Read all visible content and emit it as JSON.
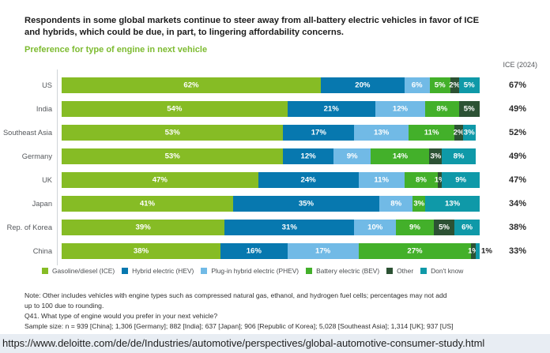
{
  "title": "Respondents in some global markets continue to steer away from all-battery electric vehicles in favor of ICE and hybrids, which could be due, in part, to lingering affordability concerns.",
  "subtitle": "Preference for type of engine in next vehicle",
  "chart_data": {
    "type": "bar",
    "orientation": "horizontal-stacked",
    "xlim": [
      0,
      100
    ],
    "legend_position": "bottom",
    "categories": [
      "US",
      "India",
      "Southeast Asia",
      "Germany",
      "UK",
      "Japan",
      "Rep. of Korea",
      "China"
    ],
    "series": [
      {
        "name": "Gasoline/diesel (ICE)",
        "color": "#86BC25",
        "values": [
          62,
          54,
          53,
          53,
          47,
          41,
          39,
          38
        ]
      },
      {
        "name": "Hybrid electric (HEV)",
        "color": "#0778AF",
        "values": [
          20,
          21,
          17,
          12,
          24,
          35,
          31,
          16
        ]
      },
      {
        "name": "Plug-in hybrid electric (PHEV)",
        "color": "#71BAE6",
        "values": [
          6,
          12,
          13,
          9,
          11,
          8,
          10,
          17
        ]
      },
      {
        "name": "Battery electric (BEV)",
        "color": "#43B02A",
        "values": [
          5,
          8,
          11,
          14,
          8,
          3,
          9,
          27
        ]
      },
      {
        "name": "Other",
        "color": "#2C5234",
        "values": [
          2,
          5,
          2,
          3,
          1,
          0,
          5,
          1
        ]
      },
      {
        "name": "Don't know",
        "color": "#0F99A8",
        "values": [
          5,
          0,
          3,
          8,
          9,
          13,
          6,
          1
        ]
      }
    ],
    "ice_2024": {
      "label": "ICE (2024)",
      "values": [
        "67%",
        "49%",
        "52%",
        "49%",
        "47%",
        "34%",
        "38%",
        "33%"
      ]
    }
  },
  "notes": {
    "lines": [
      "Note: Other includes vehicles with engine types such as compressed natural gas, ethanol, and hydrogen fuel cells; percentages may not add",
      "up to 100 due to rounding.",
      "Q41. What type of engine would you prefer in your next vehicle?",
      "Sample size: n = 939 [China]; 1,306 [Germany]; 882 [India]; 637 [Japan]; 906 [Republic of Korea]; 5,028 [Southeast Asia]; 1,314 [UK]; 937 [US]"
    ]
  },
  "url_bar": "https://www.deloitte.com/de/de/Industries/automotive/perspectives/global-automotive-consumer-study.html"
}
